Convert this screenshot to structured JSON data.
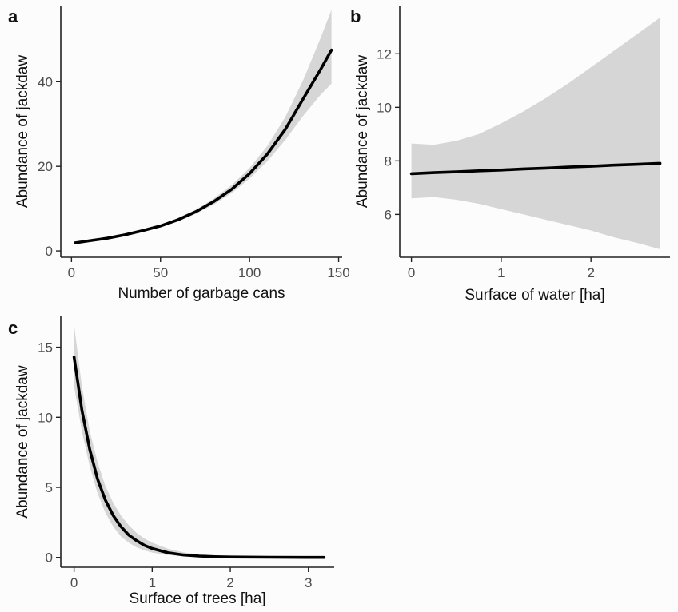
{
  "chart_data": [
    {
      "panel": "a",
      "type": "line",
      "xlabel": "Number of garbage cans",
      "ylabel": "Abundance of jackdaw",
      "xlim": [
        -6,
        152
      ],
      "ylim": [
        -1.5,
        58
      ],
      "xticks": [
        0,
        50,
        100,
        150
      ],
      "yticks": [
        0,
        20,
        40
      ],
      "grid": false,
      "x": [
        2,
        10,
        20,
        30,
        40,
        50,
        60,
        70,
        80,
        90,
        100,
        110,
        120,
        130,
        140,
        146
      ],
      "y": [
        1.9,
        2.4,
        3.0,
        3.8,
        4.8,
        5.9,
        7.4,
        9.3,
        11.7,
        14.6,
        18.3,
        22.9,
        28.7,
        35.9,
        43.0,
        47.5
      ],
      "lower": [
        1.7,
        2.2,
        2.8,
        3.6,
        4.5,
        5.6,
        7.0,
        8.8,
        11.0,
        13.7,
        17.1,
        21.2,
        26.2,
        31.9,
        37.0,
        39.5
      ],
      "upper": [
        2.1,
        2.6,
        3.2,
        4.0,
        5.1,
        6.2,
        7.8,
        9.8,
        12.4,
        15.6,
        19.6,
        24.8,
        31.6,
        40.3,
        50.5,
        57.0
      ]
    },
    {
      "panel": "b",
      "type": "line",
      "xlabel": "Surface of water [ha]",
      "ylabel": "Abundance of jackdaw",
      "xlim": [
        -0.13,
        2.88
      ],
      "ylim": [
        4.4,
        13.8
      ],
      "xticks": [
        0,
        1,
        2
      ],
      "yticks": [
        6,
        8,
        10,
        12
      ],
      "grid": false,
      "x": [
        0,
        0.25,
        0.5,
        0.75,
        1.0,
        1.25,
        1.5,
        1.75,
        2.0,
        2.25,
        2.5,
        2.77
      ],
      "y": [
        7.52,
        7.56,
        7.59,
        7.63,
        7.66,
        7.7,
        7.73,
        7.77,
        7.8,
        7.84,
        7.87,
        7.91
      ],
      "lower": [
        6.6,
        6.65,
        6.55,
        6.4,
        6.2,
        6.0,
        5.8,
        5.6,
        5.4,
        5.15,
        4.95,
        4.7
      ],
      "upper": [
        8.65,
        8.6,
        8.75,
        9.0,
        9.4,
        9.85,
        10.35,
        10.9,
        11.5,
        12.1,
        12.7,
        13.35
      ]
    },
    {
      "panel": "c",
      "type": "line",
      "xlabel": "Surface of trees [ha]",
      "ylabel": "Abundance of jackdaw",
      "xlim": [
        -0.17,
        3.33
      ],
      "ylim": [
        -0.7,
        17.2
      ],
      "xticks": [
        0,
        1,
        2,
        3
      ],
      "yticks": [
        0,
        5,
        10,
        15
      ],
      "grid": false,
      "x": [
        0,
        0.1,
        0.2,
        0.3,
        0.4,
        0.5,
        0.6,
        0.7,
        0.8,
        0.9,
        1.0,
        1.2,
        1.4,
        1.6,
        1.8,
        2.0,
        2.5,
        3.0,
        3.2
      ],
      "y": [
        14.3,
        10.5,
        7.7,
        5.6,
        4.1,
        3.0,
        2.2,
        1.6,
        1.2,
        0.87,
        0.64,
        0.34,
        0.18,
        0.1,
        0.05,
        0.03,
        0.01,
        0.0,
        0.0
      ],
      "lower": [
        12.2,
        9.0,
        6.5,
        4.6,
        3.2,
        2.2,
        1.5,
        1.05,
        0.72,
        0.5,
        0.35,
        0.17,
        0.08,
        0.04,
        0.02,
        0.01,
        0.0,
        0.0,
        0.0
      ],
      "upper": [
        16.6,
        12.2,
        9.0,
        6.8,
        5.1,
        3.9,
        3.0,
        2.3,
        1.75,
        1.35,
        1.05,
        0.62,
        0.36,
        0.21,
        0.12,
        0.07,
        0.02,
        0.01,
        0.0
      ]
    }
  ]
}
